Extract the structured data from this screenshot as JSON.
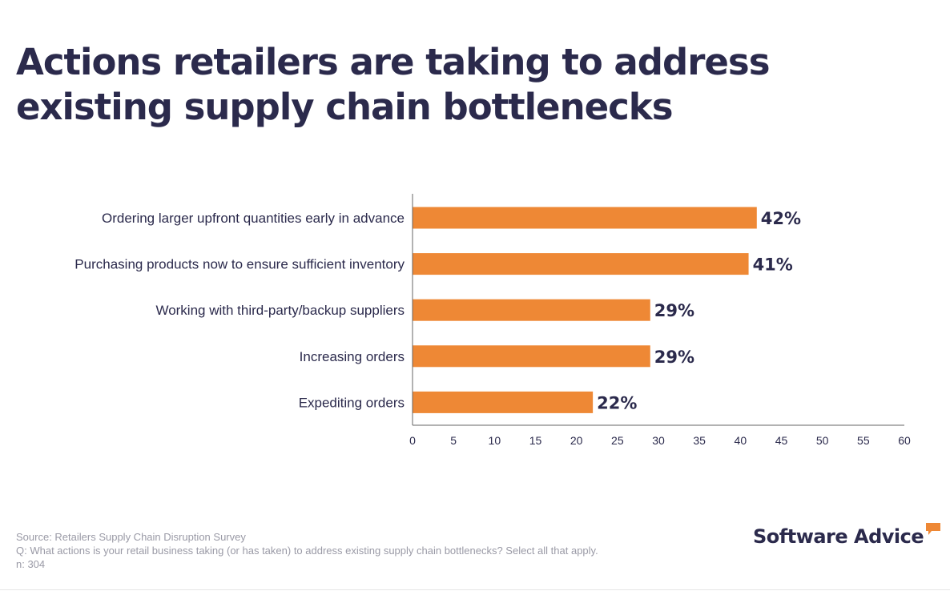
{
  "title": "Actions retailers are taking to address existing supply chain bottlenecks",
  "chart_data": {
    "type": "bar",
    "orientation": "horizontal",
    "title": "Actions retailers are taking to address existing supply chain bottlenecks",
    "categories": [
      "Ordering larger upfront quantities early in advance",
      "Purchasing products now to ensure sufficient inventory",
      "Working with third-party/backup suppliers",
      "Increasing orders",
      "Expediting orders"
    ],
    "values": [
      42,
      41,
      29,
      29,
      22
    ],
    "value_labels": [
      "42%",
      "41%",
      "29%",
      "29%",
      "22%"
    ],
    "xlim": [
      0,
      60
    ],
    "xticks": [
      0,
      5,
      10,
      15,
      20,
      25,
      30,
      35,
      40,
      45,
      50,
      55,
      60
    ],
    "xlabel": "",
    "ylabel": "",
    "grid": false,
    "bar_color": "#ee8835",
    "text_color": "#2b2a4c"
  },
  "footer": {
    "source": "Source: Retailers Supply Chain Disruption Survey",
    "question": "Q: What actions is your retail business taking (or has taken) to address existing supply chain bottlenecks? Select all that apply.",
    "sample": "n: 304"
  },
  "brand": {
    "name": "Software Advice",
    "icon": "speech-bubble-icon",
    "accent_color": "#ee8835"
  }
}
